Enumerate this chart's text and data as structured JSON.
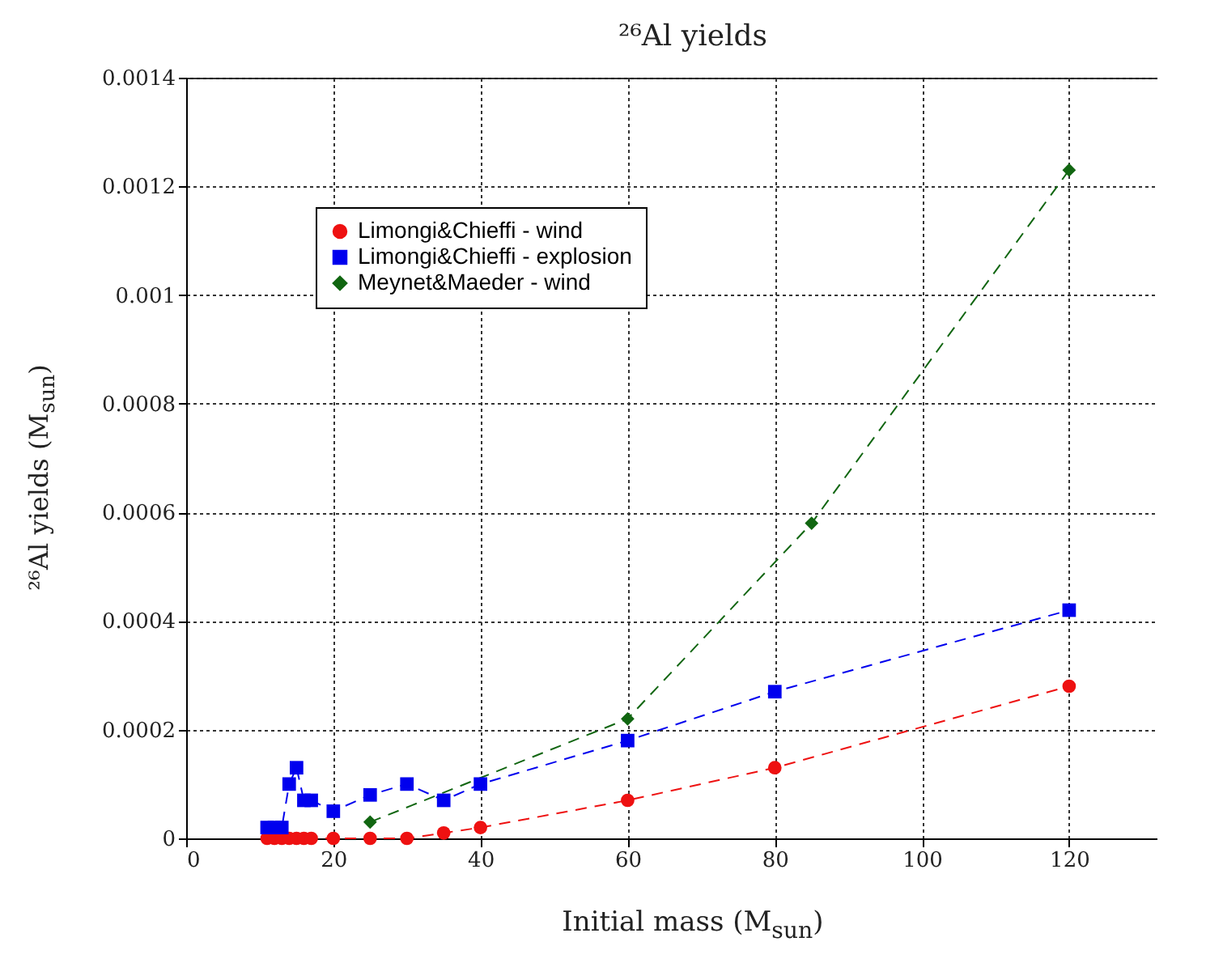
{
  "chart_data": {
    "type": "line",
    "title": "²⁶Al yields",
    "xlabel": "Initial mass (M$_{sun}$)",
    "ylabel": "²⁶Al yields (M$_{sun}$)",
    "xlim": [
      0,
      132
    ],
    "xticks": [
      0,
      20,
      40,
      60,
      80,
      100,
      120
    ],
    "ylim": [
      0,
      0.0014
    ],
    "yticks": [
      0,
      0.0002,
      0.0004,
      0.0006,
      0.0008,
      0.001,
      0.0012,
      0.0014
    ],
    "grid": true,
    "legend": "top left",
    "line_style": "dashed",
    "series": [
      {
        "name": "Limongi&Chieffi - wind",
        "color": "#ee1111",
        "marker": "circle",
        "x": [
          11,
          12,
          13,
          14,
          15,
          16,
          17,
          20,
          25,
          30,
          35,
          40,
          60,
          80,
          120
        ],
        "values": [
          0,
          0,
          0,
          0,
          0,
          0,
          0,
          0,
          0,
          0,
          1e-05,
          2e-05,
          7e-05,
          0.00013,
          0.00028
        ]
      },
      {
        "name": "Limongi&Chieffi - explosion",
        "color": "#0000ee",
        "marker": "square",
        "x": [
          11,
          12,
          13,
          14,
          15,
          16,
          17,
          20,
          25,
          30,
          35,
          40,
          60,
          80,
          120
        ],
        "values": [
          2e-05,
          2e-05,
          2e-05,
          0.0001,
          0.00013,
          7e-05,
          7e-05,
          5e-05,
          8e-05,
          0.0001,
          7e-05,
          0.0001,
          0.00018,
          0.00027,
          0.00042
        ]
      },
      {
        "name": "Meynet&Maeder - wind",
        "color": "#116611",
        "marker": "diamond",
        "x": [
          25,
          60,
          85,
          120
        ],
        "values": [
          3e-05,
          0.00022,
          0.00058,
          0.00123
        ]
      }
    ]
  }
}
